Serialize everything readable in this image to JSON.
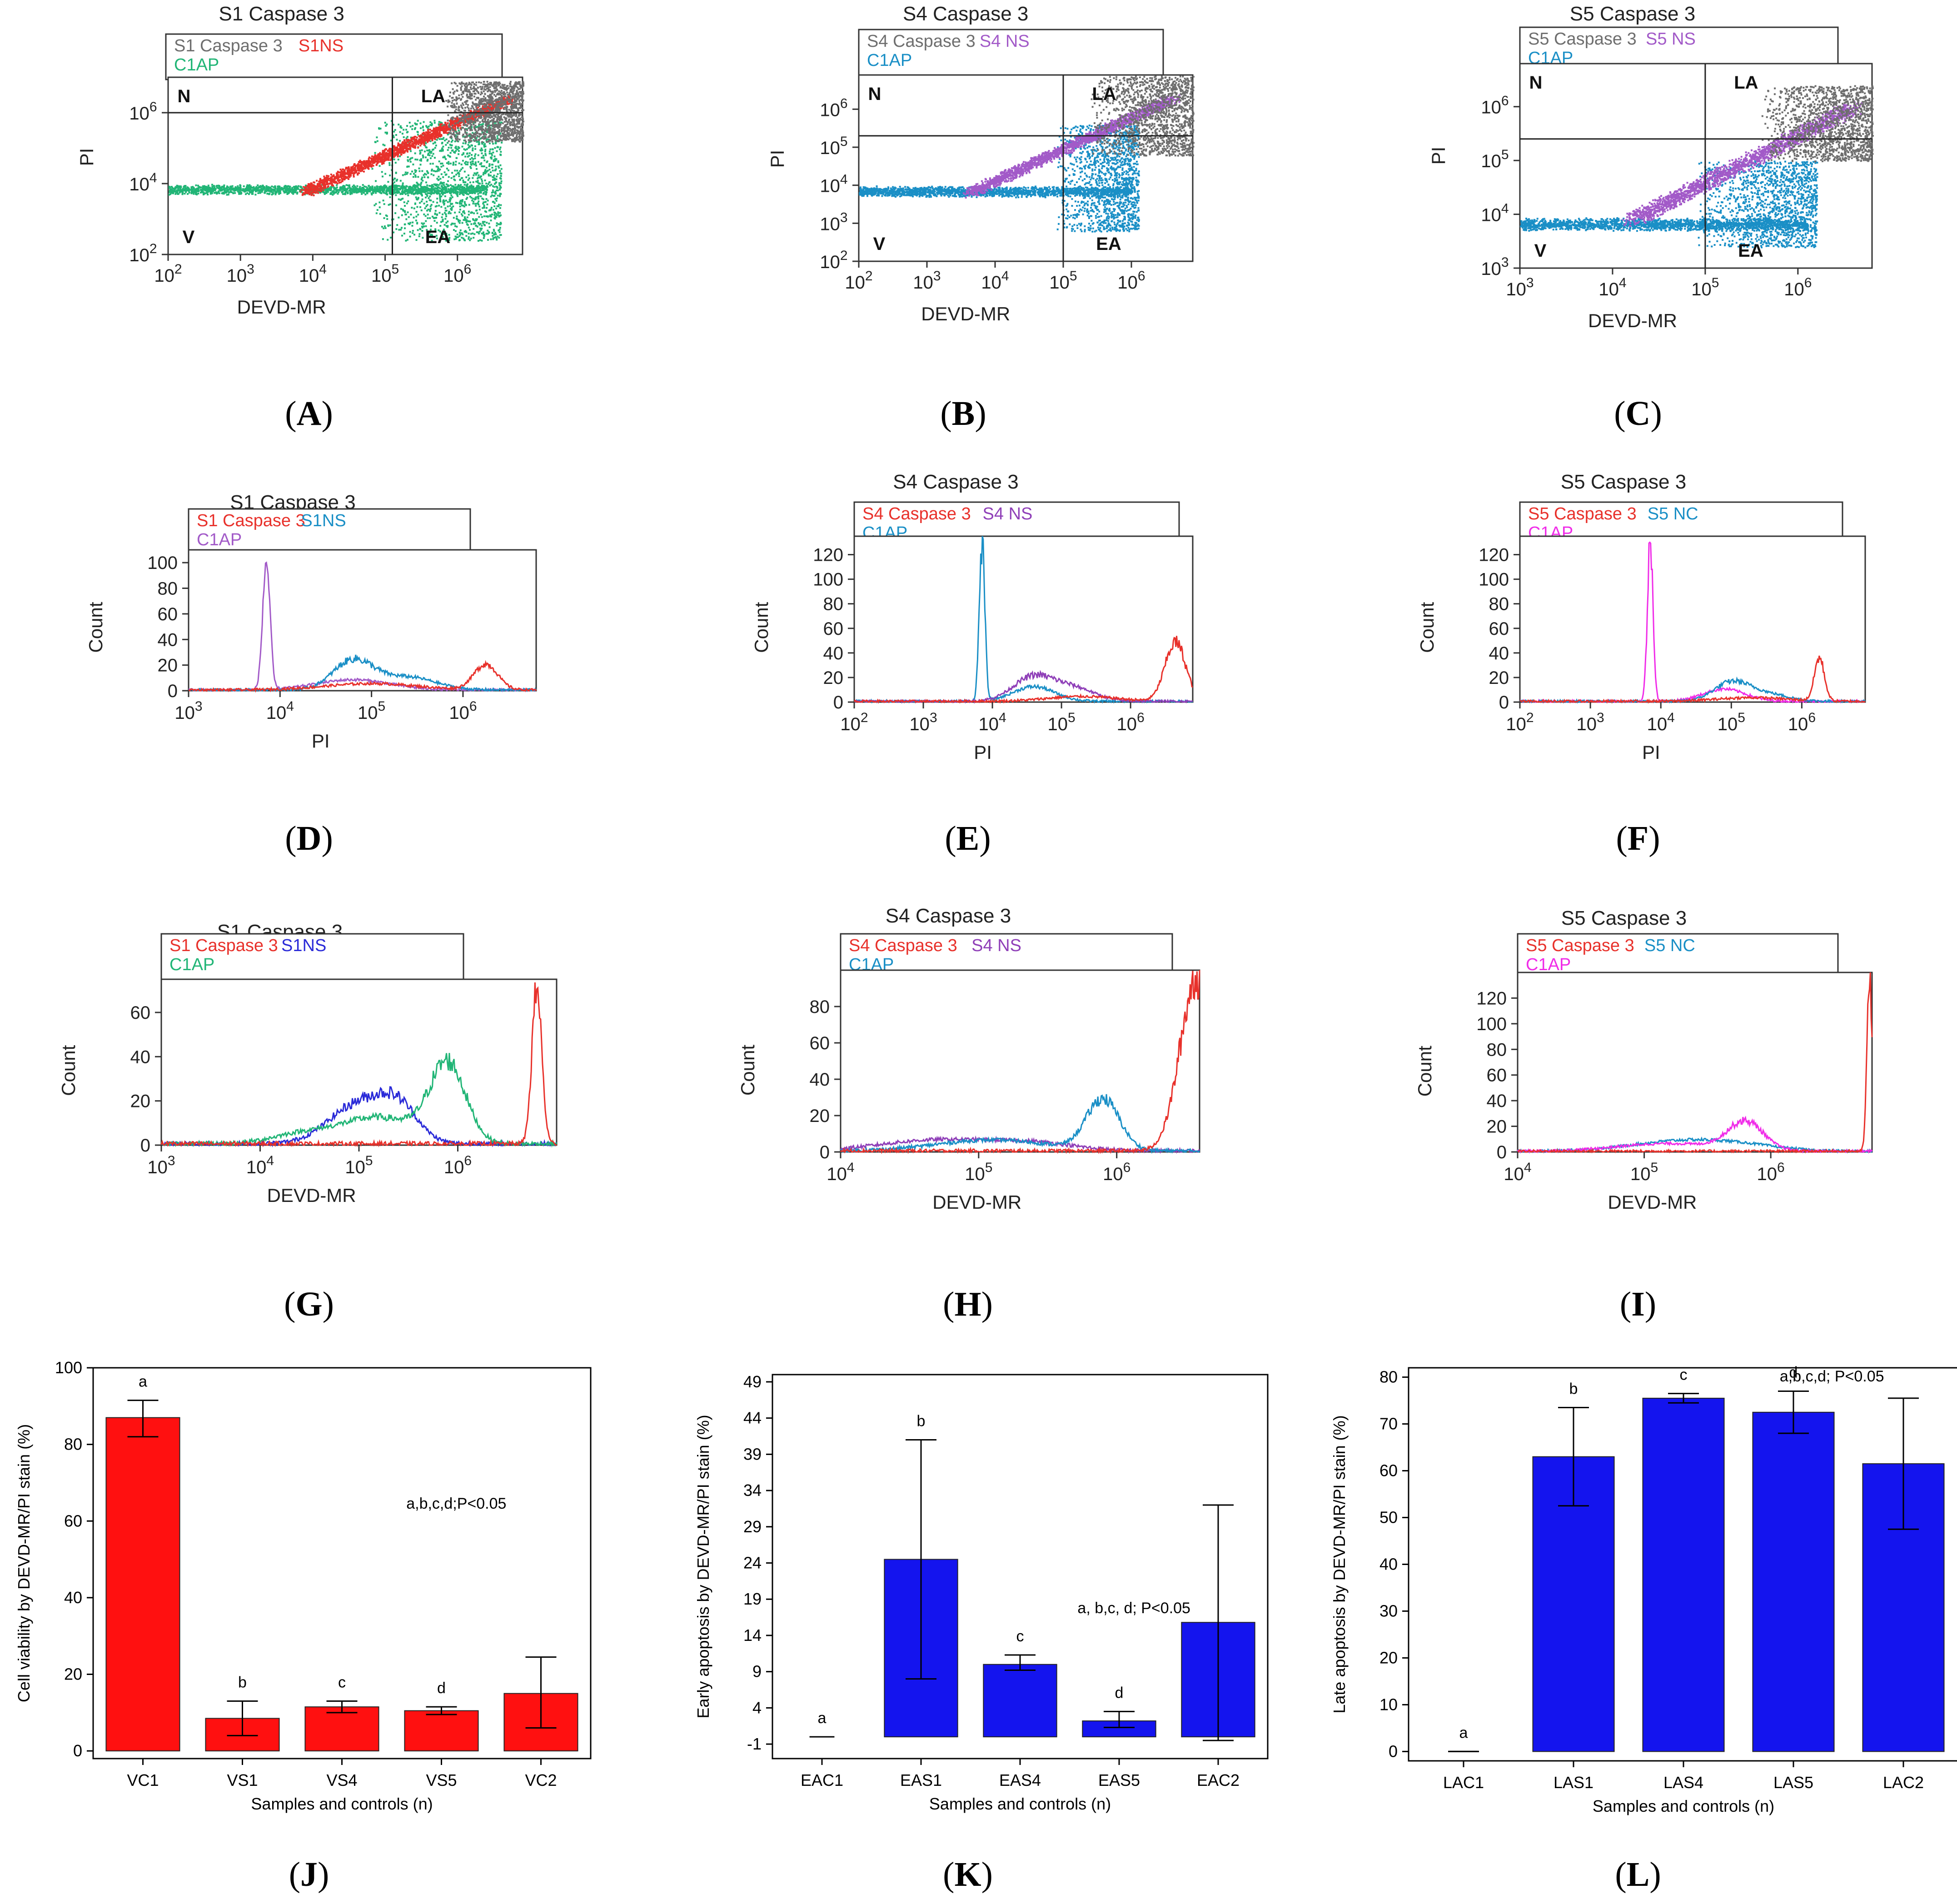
{
  "colors": {
    "red": "#e8312b",
    "gray": "#6e6e6e",
    "green": "#21b576",
    "cyan": "#1a8fc6",
    "purple": "#a25ac8",
    "magenta": "#f02ce8",
    "blue": "#2a2ad8",
    "violet": "#8f3fb8",
    "bar_red": "#ff1010",
    "bar_blue": "#1414ee"
  },
  "chart_data": [
    {
      "id": "A",
      "type": "scatter",
      "letter": "(A)",
      "title": "S1 Caspase 3",
      "xlabel": "DEVD-MR",
      "ylabel": "PI",
      "xlim_log10": [
        2,
        6.9
      ],
      "ylim_log10": [
        2,
        7.0
      ],
      "xticks": [
        "10^2",
        "10^3",
        "10^4",
        "10^5",
        "10^6"
      ],
      "yticks": [
        "10^2",
        "10^4",
        "10^6"
      ],
      "quad_x": 5.1,
      "quad_y": 6.0,
      "quadrants": [
        "N",
        "LA",
        "V",
        "EA"
      ],
      "legend": [
        {
          "text": "S1 Caspase 3",
          "color": "gray"
        },
        {
          "text": "S1NS",
          "color": "red"
        },
        {
          "text": "C1AP",
          "color": "green"
        }
      ],
      "populations": [
        {
          "name": "C1AP",
          "color": "green",
          "shape": "band",
          "x": [
            2.0,
            6.4
          ],
          "y": [
            3.7,
            4.0
          ]
        },
        {
          "name": "C1AP",
          "color": "green",
          "shape": "cloud",
          "x": [
            4.8,
            6.6
          ],
          "y": [
            2.4,
            5.8
          ]
        },
        {
          "name": "S1NS",
          "color": "red",
          "shape": "diag",
          "x": [
            3.9,
            6.7
          ],
          "y": [
            3.8,
            6.4
          ]
        },
        {
          "name": "S1 Caspase 3",
          "color": "gray",
          "shape": "cloud",
          "x": [
            5.8,
            6.9
          ],
          "y": [
            5.2,
            6.9
          ]
        }
      ]
    },
    {
      "id": "B",
      "type": "scatter",
      "letter": "(B)",
      "title": "S4 Caspase 3",
      "xlabel": "DEVD-MR",
      "ylabel": "PI",
      "xlim_log10": [
        2,
        6.9
      ],
      "ylim_log10": [
        2,
        6.9
      ],
      "xticks": [
        "10^2",
        "10^3",
        "10^4",
        "10^5",
        "10^6"
      ],
      "yticks": [
        "10^2",
        "10^3",
        "10^4",
        "10^5",
        "10^6"
      ],
      "quad_x": 5.0,
      "quad_y": 5.3,
      "quadrants": [
        "N",
        "LA",
        "V",
        "EA"
      ],
      "legend": [
        {
          "text": "S4 Caspase 3",
          "color": "gray"
        },
        {
          "text": "S4 NS",
          "color": "purple"
        },
        {
          "text": "C1AP",
          "color": "cyan"
        }
      ],
      "populations": [
        {
          "name": "C1AP",
          "color": "cyan",
          "shape": "band",
          "x": [
            2.0,
            6.0
          ],
          "y": [
            3.7,
            4.0
          ]
        },
        {
          "name": "C1AP",
          "color": "cyan",
          "shape": "cloud",
          "x": [
            4.9,
            6.1
          ],
          "y": [
            2.8,
            5.6
          ]
        },
        {
          "name": "S4 NS",
          "color": "purple",
          "shape": "diag",
          "x": [
            3.6,
            6.6
          ],
          "y": [
            3.8,
            6.3
          ]
        },
        {
          "name": "S4 Caspase 3",
          "color": "gray",
          "shape": "cloud",
          "x": [
            5.4,
            6.9
          ],
          "y": [
            4.8,
            6.9
          ]
        }
      ]
    },
    {
      "id": "C",
      "type": "scatter",
      "letter": "(C)",
      "title": "S5 Caspase 3",
      "xlabel": "DEVD-MR",
      "ylabel": "PI",
      "xlim_log10": [
        3,
        6.8
      ],
      "ylim_log10": [
        3,
        6.8
      ],
      "xticks": [
        "10^3",
        "10^4",
        "10^5",
        "10^6"
      ],
      "yticks": [
        "10^3",
        "10^4",
        "10^5",
        "10^6"
      ],
      "quad_x": 5.0,
      "quad_y": 5.4,
      "quadrants": [
        "N",
        "LA",
        "V",
        "EA"
      ],
      "legend": [
        {
          "text": "S5 Caspase 3",
          "color": "gray"
        },
        {
          "text": "S5 NS",
          "color": "purple"
        },
        {
          "text": "C1AP",
          "color": "cyan"
        }
      ],
      "populations": [
        {
          "name": "C1AP",
          "color": "cyan",
          "shape": "band",
          "x": [
            3.0,
            6.1
          ],
          "y": [
            3.7,
            3.95
          ]
        },
        {
          "name": "C1AP",
          "color": "cyan",
          "shape": "cloud",
          "x": [
            4.9,
            6.2
          ],
          "y": [
            3.4,
            5.0
          ]
        },
        {
          "name": "S5 NS",
          "color": "purple",
          "shape": "diag",
          "x": [
            4.2,
            6.6
          ],
          "y": [
            3.9,
            6.0
          ]
        },
        {
          "name": "S5 Caspase 3",
          "color": "gray",
          "shape": "cloud",
          "x": [
            5.6,
            6.8
          ],
          "y": [
            5.0,
            6.4
          ]
        }
      ]
    },
    {
      "id": "D",
      "type": "line",
      "letter": "(D)",
      "title": "S1 Caspase 3",
      "xlabel": "PI",
      "ylabel": "Count",
      "xlim_log10": [
        3,
        6.8
      ],
      "ylim": [
        0,
        110
      ],
      "xticks": [
        "10^3",
        "10^4",
        "10^5",
        "10^6"
      ],
      "yticks": [
        0,
        20,
        40,
        60,
        80,
        100
      ],
      "legend": [
        {
          "text": "S1 Caspase 3",
          "color": "red"
        },
        {
          "text": "S1NS",
          "color": "cyan"
        },
        {
          "text": "C1AP",
          "color": "purple"
        }
      ],
      "series": [
        {
          "name": "C1AP",
          "color": "purple",
          "peaks": [
            [
              3.85,
              100,
              0.04
            ],
            [
              4.8,
              8,
              0.4
            ]
          ]
        },
        {
          "name": "S1NS",
          "color": "cyan",
          "peaks": [
            [
              4.8,
              23,
              0.22
            ],
            [
              5.4,
              10,
              0.3
            ]
          ]
        },
        {
          "name": "S1 Caspase 3",
          "color": "red",
          "peaks": [
            [
              6.25,
              20,
              0.13
            ],
            [
              5.0,
              5,
              0.5
            ]
          ]
        }
      ]
    },
    {
      "id": "E",
      "type": "line",
      "letter": "(E)",
      "title": "S4 Caspase 3",
      "xlabel": "PI",
      "ylabel": "Count",
      "xlim_log10": [
        2,
        6.9
      ],
      "ylim": [
        0,
        135
      ],
      "xticks": [
        "10^2",
        "10^3",
        "10^4",
        "10^5",
        "10^6"
      ],
      "yticks": [
        0,
        20,
        40,
        60,
        80,
        100,
        120
      ],
      "legend": [
        {
          "text": "S4 Caspase 3",
          "color": "red"
        },
        {
          "text": "S4 NS",
          "color": "violet"
        },
        {
          "text": "C1AP",
          "color": "cyan"
        }
      ],
      "series": [
        {
          "name": "C1AP",
          "color": "cyan",
          "peaks": [
            [
              3.85,
              128,
              0.04
            ],
            [
              4.6,
              12,
              0.3
            ]
          ]
        },
        {
          "name": "S4 NS",
          "color": "violet",
          "peaks": [
            [
              4.6,
              20,
              0.3
            ],
            [
              5.2,
              10,
              0.3
            ]
          ]
        },
        {
          "name": "S4 Caspase 3",
          "color": "red",
          "peaks": [
            [
              6.65,
              48,
              0.15
            ],
            [
              5.3,
              4,
              0.5
            ]
          ]
        }
      ]
    },
    {
      "id": "F",
      "type": "line",
      "letter": "(F)",
      "title": "S5 Caspase 3",
      "xlabel": "PI",
      "ylabel": "Count",
      "xlim_log10": [
        2,
        6.9
      ],
      "ylim": [
        0,
        135
      ],
      "xticks": [
        "10^2",
        "10^3",
        "10^4",
        "10^5",
        "10^6"
      ],
      "yticks": [
        0,
        20,
        40,
        60,
        80,
        100,
        120
      ],
      "legend": [
        {
          "text": "S5 Caspase 3",
          "color": "red"
        },
        {
          "text": "S5 NC",
          "color": "cyan"
        },
        {
          "text": "C1AP",
          "color": "magenta"
        }
      ],
      "series": [
        {
          "name": "C1AP",
          "color": "magenta",
          "peaks": [
            [
              3.85,
              130,
              0.04
            ],
            [
              4.9,
              10,
              0.3
            ]
          ]
        },
        {
          "name": "S5 NC",
          "color": "cyan",
          "peaks": [
            [
              5.0,
              15,
              0.25
            ],
            [
              5.5,
              6,
              0.3
            ]
          ]
        },
        {
          "name": "S5 Caspase 3",
          "color": "red",
          "peaks": [
            [
              6.25,
              35,
              0.07
            ],
            [
              5.3,
              3,
              0.5
            ]
          ]
        }
      ]
    },
    {
      "id": "G",
      "type": "line",
      "letter": "(G)",
      "title": "S1 Caspase 3",
      "xlabel": "DEVD-MR",
      "ylabel": "Count",
      "xlim_log10": [
        3,
        7.0
      ],
      "ylim": [
        0,
        75
      ],
      "xticks": [
        "10^3",
        "10^4",
        "10^5",
        "10^6"
      ],
      "yticks": [
        0,
        20,
        40,
        60
      ],
      "legend": [
        {
          "text": "S1 Caspase 3",
          "color": "red"
        },
        {
          "text": "S1NS",
          "color": "blue"
        },
        {
          "text": "C1AP",
          "color": "green"
        }
      ],
      "series": [
        {
          "name": "S1NS",
          "color": "blue",
          "peaks": [
            [
              5.0,
              18,
              0.3
            ],
            [
              5.4,
              14,
              0.2
            ]
          ]
        },
        {
          "name": "C1AP",
          "color": "green",
          "peaks": [
            [
              5.9,
              35,
              0.18
            ],
            [
              5.2,
              12,
              0.4
            ],
            [
              4.4,
              4,
              0.3
            ]
          ]
        },
        {
          "name": "S1 Caspase 3",
          "color": "red",
          "peaks": [
            [
              6.8,
              70,
              0.05
            ]
          ]
        }
      ]
    },
    {
      "id": "H",
      "type": "line",
      "letter": "(H)",
      "title": "S4 Caspase 3",
      "xlabel": "DEVD-MR",
      "ylabel": "Count",
      "xlim_log10": [
        4,
        6.6
      ],
      "ylim": [
        0,
        100
      ],
      "xticks": [
        "10^4",
        "10^5",
        "10^6"
      ],
      "yticks": [
        0,
        20,
        40,
        60,
        80
      ],
      "legend": [
        {
          "text": "S4 Caspase 3",
          "color": "red"
        },
        {
          "text": "S4 NS",
          "color": "violet"
        },
        {
          "text": "C1AP",
          "color": "cyan"
        }
      ],
      "series": [
        {
          "name": "S4 NS",
          "color": "violet",
          "peaks": [
            [
              4.7,
              6,
              0.4
            ],
            [
              5.4,
              4,
              0.3
            ]
          ]
        },
        {
          "name": "C1AP",
          "color": "cyan",
          "peaks": [
            [
              5.9,
              28,
              0.12
            ],
            [
              5.1,
              6,
              0.4
            ]
          ]
        },
        {
          "name": "S4 Caspase 3",
          "color": "red",
          "peaks": [
            [
              6.58,
              95,
              0.12
            ]
          ]
        }
      ]
    },
    {
      "id": "I",
      "type": "line",
      "letter": "(I)",
      "title": "S5 Caspase 3",
      "xlabel": "DEVD-MR",
      "ylabel": "Count",
      "xlim_log10": [
        4,
        6.8
      ],
      "ylim": [
        0,
        140
      ],
      "xticks": [
        "10^4",
        "10^5",
        "10^6"
      ],
      "yticks": [
        0,
        20,
        40,
        60,
        80,
        100,
        120
      ],
      "legend": [
        {
          "text": "S5 Caspase 3",
          "color": "red"
        },
        {
          "text": "S5 NC",
          "color": "cyan"
        },
        {
          "text": "C1AP",
          "color": "magenta"
        }
      ],
      "series": [
        {
          "name": "S5 NC",
          "color": "cyan",
          "peaks": [
            [
              5.3,
              8,
              0.4
            ],
            [
              5.8,
              3,
              0.3
            ]
          ]
        },
        {
          "name": "C1AP",
          "color": "magenta",
          "peaks": [
            [
              5.8,
              22,
              0.14
            ],
            [
              5.2,
              6,
              0.4
            ]
          ]
        },
        {
          "name": "S5 Caspase 3",
          "color": "red",
          "peaks": [
            [
              6.78,
              135,
              0.02
            ]
          ]
        }
      ]
    },
    {
      "id": "J",
      "type": "bar",
      "letter": "(J)",
      "xlabel": "Samples and controls (n)",
      "ylabel": "Cell viability by DEVD-MR/PI stain (%)",
      "ylim": [
        -2,
        100
      ],
      "yticks": [
        0,
        20,
        40,
        60,
        80,
        100
      ],
      "color": "bar_red",
      "baseline": 0,
      "categories": [
        "VC1",
        "VS1",
        "VS4",
        "VS5",
        "VC2"
      ],
      "values": [
        87,
        8.5,
        11.5,
        10.5,
        15
      ],
      "errors": [
        [
          82,
          91.5
        ],
        [
          4,
          13
        ],
        [
          10,
          13
        ],
        [
          9.5,
          11.5
        ],
        [
          6,
          24.5
        ]
      ],
      "letters": [
        "a",
        "b",
        "c",
        "d",
        ""
      ],
      "significance": "a,b,c,d;P<0.05"
    },
    {
      "id": "K",
      "type": "bar",
      "letter": "(K)",
      "xlabel": "Samples and controls (n)",
      "ylabel": "Early apoptosis by DEVD-MR/PI stain (%)",
      "ylim": [
        -3,
        50
      ],
      "yticks": [
        -1,
        4,
        9,
        14,
        19,
        24,
        29,
        34,
        39,
        44,
        49
      ],
      "color": "bar_blue",
      "baseline": 0,
      "categories": [
        "EAC1",
        "EAS1",
        "EAS4",
        "EAS5",
        "EAC2"
      ],
      "values": [
        0,
        24.5,
        10,
        2.2,
        15.8
      ],
      "errors": [
        null,
        [
          8,
          41
        ],
        [
          9.2,
          11.3
        ],
        [
          1.3,
          3.5
        ],
        [
          -0.5,
          32
        ]
      ],
      "letters": [
        "a",
        "b",
        "c",
        "d",
        ""
      ],
      "significance": "a, b,c, d; P<0.05"
    },
    {
      "id": "L",
      "type": "bar",
      "letter": "(L)",
      "xlabel": "Samples and controls (n)",
      "ylabel": "Late apoptosis by DEVD-MR/PI stain (%)",
      "ylim": [
        -2,
        82
      ],
      "yticks": [
        0,
        10,
        20,
        30,
        40,
        50,
        60,
        70,
        80
      ],
      "color": "bar_blue",
      "baseline": 0,
      "categories": [
        "LAC1",
        "LAS1",
        "LAS4",
        "LAS5",
        "LAC2"
      ],
      "values": [
        0,
        63,
        75.5,
        72.5,
        61.5
      ],
      "errors": [
        [
          0,
          0
        ],
        [
          52.5,
          73.5
        ],
        [
          74.5,
          76.5
        ],
        [
          68,
          77
        ],
        [
          47.5,
          75.5
        ]
      ],
      "letters": [
        "a",
        "b",
        "c",
        "d",
        ""
      ],
      "significance": "a,b,c,d; P<0.05"
    }
  ]
}
